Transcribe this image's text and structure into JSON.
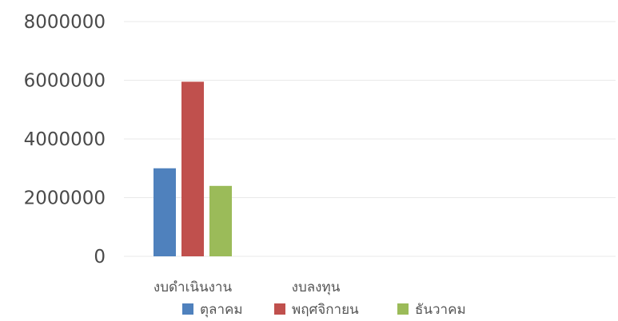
{
  "chart_data": {
    "type": "bar",
    "title": "",
    "xlabel": "",
    "ylabel": "",
    "categories": [
      "งบดำเนินงาน",
      "งบลงทุน"
    ],
    "series": [
      {
        "name": "ตุลาคม",
        "values": [
          3000000,
          0
        ],
        "color": "#4f81bd"
      },
      {
        "name": "พฤศจิกายน",
        "values": [
          5950000,
          0
        ],
        "color": "#c0504d"
      },
      {
        "name": "ธันวาคม",
        "values": [
          2400000,
          0
        ],
        "color": "#9bbb59"
      }
    ],
    "ylim": [
      0,
      8000000
    ],
    "yticks": [
      "0",
      "2000000",
      "4000000",
      "6000000",
      "8000000"
    ],
    "grid": true,
    "legend_position": "bottom"
  }
}
